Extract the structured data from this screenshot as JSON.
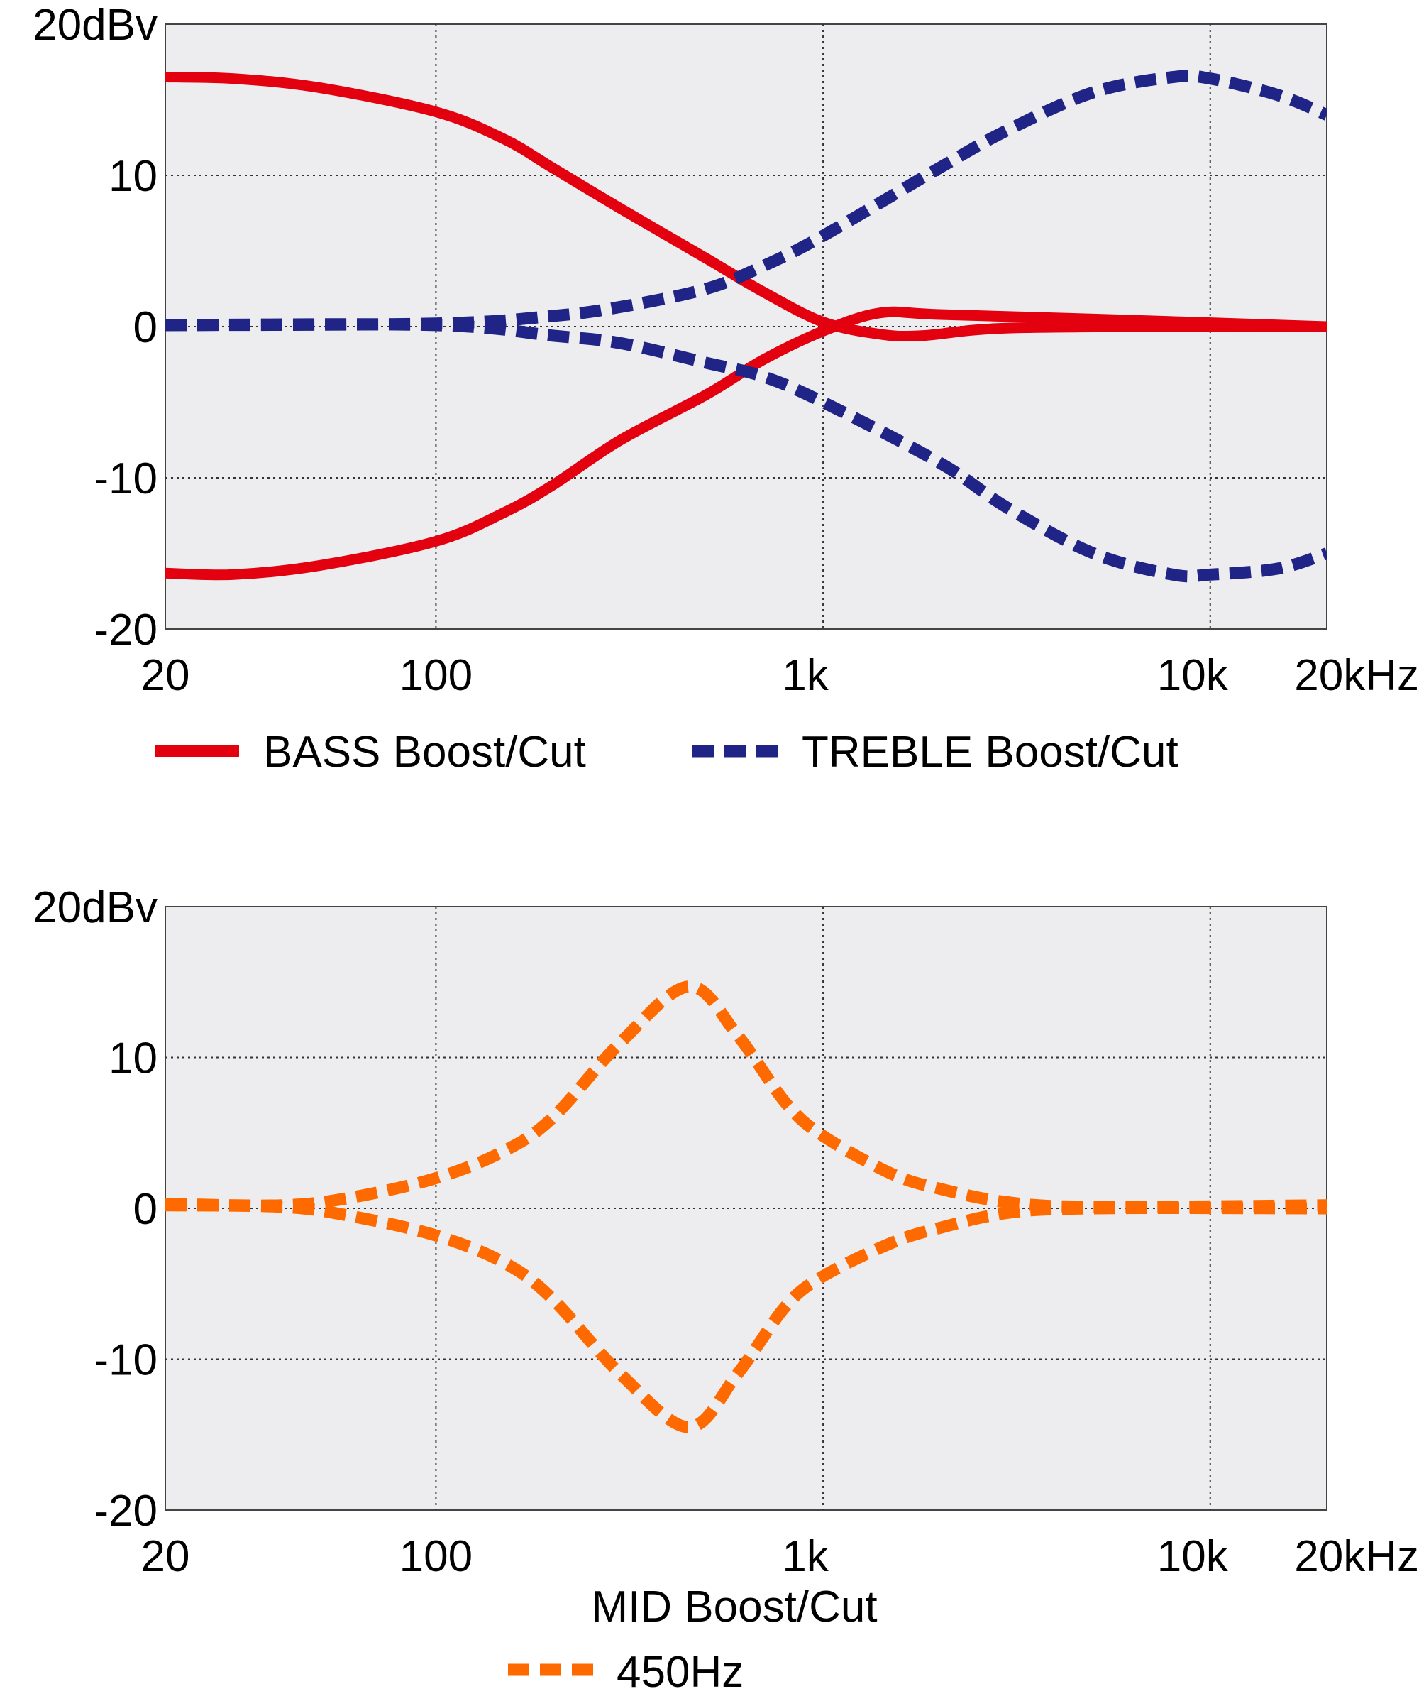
{
  "colors": {
    "bass": "#e3000f",
    "treble": "#1f2486",
    "mid": "#ff6a00",
    "plot_bg": "#ededef",
    "grid": "#333333"
  },
  "chart_data": [
    {
      "type": "line",
      "x_scale": "log",
      "xlim": [
        20,
        20000
      ],
      "ylim": [
        -20,
        20
      ],
      "grid": true,
      "y_ticks": [
        {
          "v": 20,
          "label": "20dBv"
        },
        {
          "v": 10,
          "label": "10"
        },
        {
          "v": 0,
          "label": "0"
        },
        {
          "v": -10,
          "label": "-10"
        },
        {
          "v": -20,
          "label": "-20"
        }
      ],
      "x_ticks": [
        {
          "v": 20,
          "label": "20"
        },
        {
          "v": 100,
          "label": "100"
        },
        {
          "v": 1000,
          "label": "1k"
        },
        {
          "v": 10000,
          "label": "10k"
        },
        {
          "v": 20000,
          "label": "20kHz"
        }
      ],
      "legend": [
        {
          "label": "BASS Boost/Cut",
          "style": "solid",
          "color_key": "bass"
        },
        {
          "label": "TREBLE Boost/Cut",
          "style": "dashed",
          "color_key": "treble"
        }
      ],
      "legend_placement": "bottom",
      "series": [
        {
          "group": "BASS Boost/Cut",
          "style": "solid",
          "color_key": "bass",
          "x": [
            20,
            30,
            50,
            100,
            150,
            200,
            300,
            500,
            700,
            1000,
            1400,
            1800,
            3000,
            10000,
            20000
          ],
          "y": [
            16.5,
            16.4,
            15.8,
            14.2,
            12.4,
            10.5,
            7.8,
            4.5,
            2.3,
            0.3,
            -0.5,
            -0.6,
            -0.1,
            0,
            0
          ]
        },
        {
          "group": "BASS Boost/Cut",
          "style": "solid",
          "color_key": "bass",
          "x": [
            20,
            30,
            50,
            100,
            150,
            200,
            300,
            500,
            700,
            1000,
            1400,
            2000,
            5000,
            20000
          ],
          "y": [
            -16.3,
            -16.4,
            -15.8,
            -14.2,
            -12.3,
            -10.5,
            -7.5,
            -4.5,
            -2.2,
            -0.3,
            0.9,
            0.8,
            0.5,
            0
          ]
        },
        {
          "group": "TREBLE Boost/Cut",
          "style": "dashed",
          "color_key": "treble",
          "x": [
            20,
            100,
            200,
            300,
            500,
            700,
            1000,
            2000,
            3000,
            5000,
            8000,
            10000,
            15000,
            20000
          ],
          "y": [
            0.1,
            0.2,
            0.7,
            1.3,
            2.5,
            4,
            6,
            10.5,
            13,
            15.5,
            16.5,
            16.4,
            15.3,
            14
          ]
        },
        {
          "group": "TREBLE Boost/Cut",
          "style": "dashed",
          "color_key": "treble",
          "x": [
            20,
            100,
            200,
            300,
            500,
            700,
            1000,
            2000,
            3000,
            5000,
            8000,
            10000,
            15000,
            20000
          ],
          "y": [
            0.1,
            0.1,
            -0.6,
            -1.1,
            -2.4,
            -3.3,
            -5,
            -9,
            -12,
            -15,
            -16.4,
            -16.4,
            -16,
            -15
          ]
        }
      ]
    },
    {
      "type": "line",
      "x_scale": "log",
      "xlim": [
        20,
        20000
      ],
      "ylim": [
        -20,
        20
      ],
      "grid": true,
      "y_ticks": [
        {
          "v": 20,
          "label": "20dBv"
        },
        {
          "v": 10,
          "label": "10"
        },
        {
          "v": 0,
          "label": "0"
        },
        {
          "v": -10,
          "label": "-10"
        },
        {
          "v": -20,
          "label": "-20"
        }
      ],
      "x_ticks": [
        {
          "v": 20,
          "label": "20"
        },
        {
          "v": 100,
          "label": "100"
        },
        {
          "v": 1000,
          "label": "1k"
        },
        {
          "v": 10000,
          "label": "10k"
        },
        {
          "v": 20000,
          "label": "20kHz"
        }
      ],
      "title": "MID Boost/Cut",
      "legend": [
        {
          "label": "450Hz",
          "style": "dashed",
          "color_key": "mid"
        }
      ],
      "legend_placement": "bottom",
      "series": [
        {
          "group": "450Hz",
          "style": "dashed",
          "color_key": "mid",
          "x": [
            20,
            40,
            60,
            100,
            150,
            200,
            300,
            450,
            600,
            800,
            1000,
            1500,
            2000,
            3000,
            5000,
            20000
          ],
          "y": [
            0.3,
            0.2,
            0.7,
            2,
            3.8,
            6,
            11,
            14.7,
            11.5,
            7,
            4.8,
            2.3,
            1.3,
            0.4,
            0.1,
            0.2
          ]
        },
        {
          "group": "450Hz",
          "style": "dashed",
          "color_key": "mid",
          "x": [
            20,
            40,
            60,
            100,
            150,
            200,
            300,
            450,
            600,
            800,
            1000,
            1500,
            2000,
            3000,
            5000,
            20000
          ],
          "y": [
            0.2,
            0.1,
            -0.5,
            -1.8,
            -3.6,
            -6,
            -11,
            -14.5,
            -11,
            -6.5,
            -4.5,
            -2.3,
            -1.3,
            -0.3,
            0,
            0
          ]
        }
      ]
    }
  ]
}
